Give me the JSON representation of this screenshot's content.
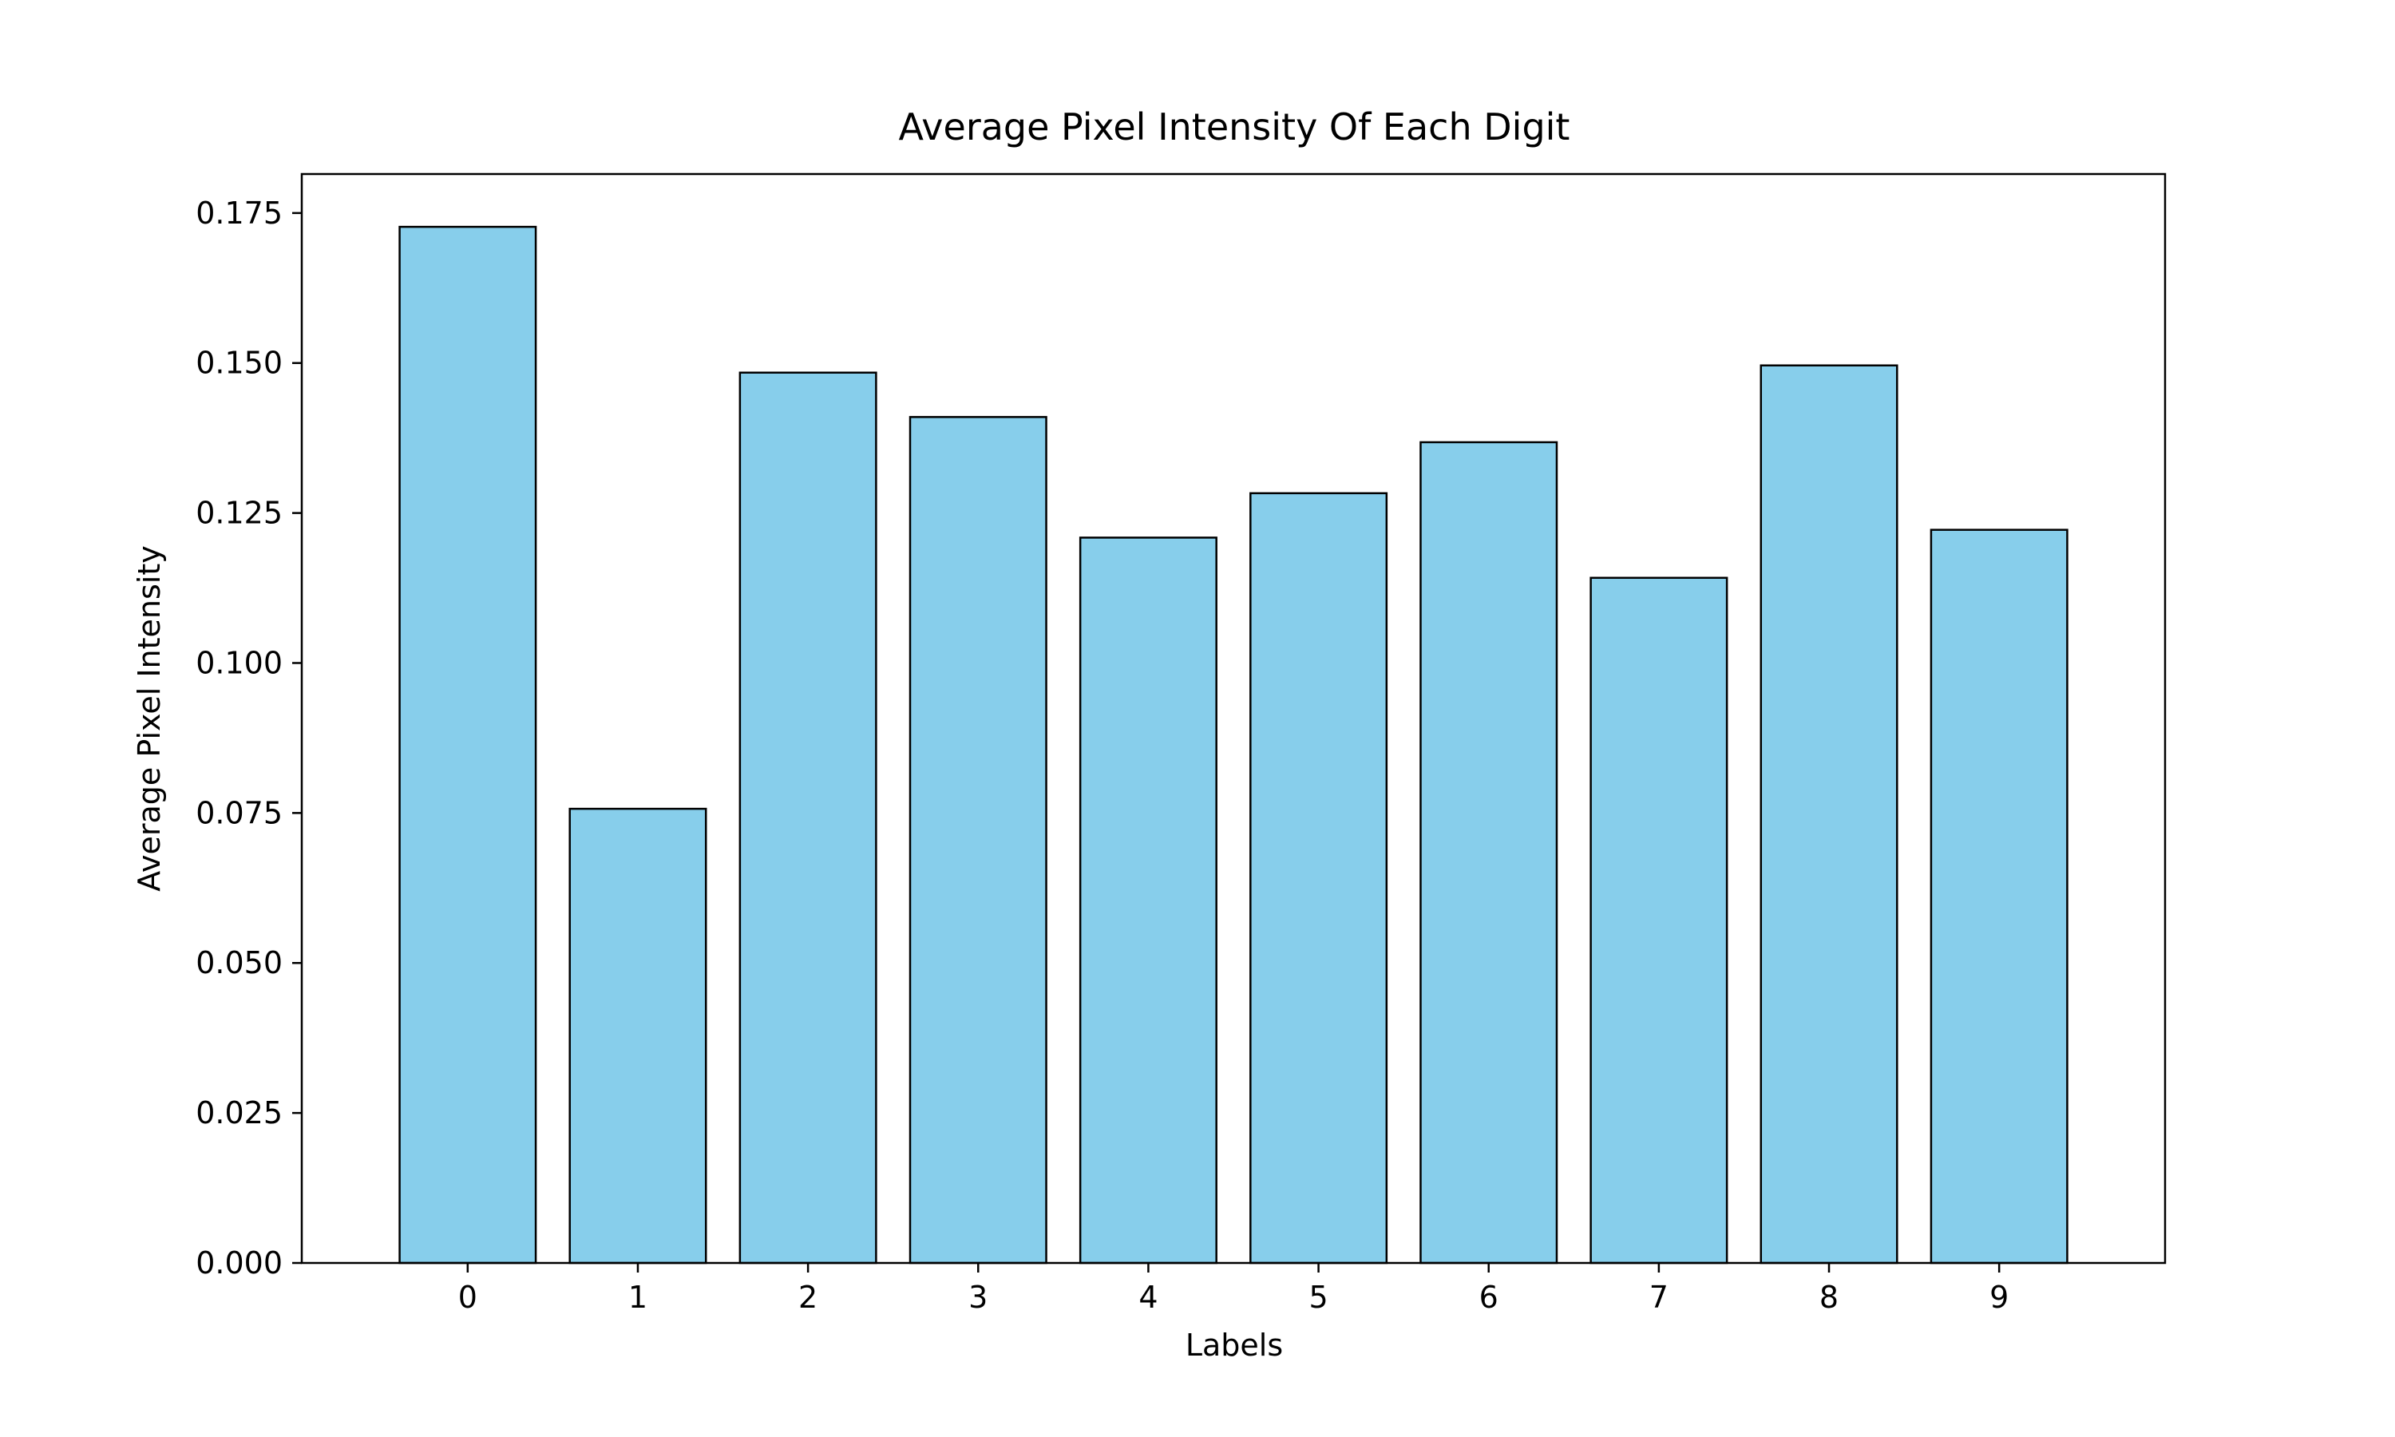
{
  "chart_data": {
    "type": "bar",
    "title": "Average Pixel Intensity Of Each Digit",
    "xlabel": "Labels",
    "ylabel": "Average Pixel Intensity",
    "categories": [
      "0",
      "1",
      "2",
      "3",
      "4",
      "5",
      "6",
      "7",
      "8",
      "9"
    ],
    "values": [
      0.1727,
      0.0757,
      0.1484,
      0.141,
      0.1209,
      0.1283,
      0.1368,
      0.1142,
      0.1496,
      0.1222
    ],
    "ylim": [
      0,
      0.1815
    ],
    "yticks": [
      "0.000",
      "0.025",
      "0.050",
      "0.075",
      "0.100",
      "0.125",
      "0.150",
      "0.175"
    ],
    "ytick_values": [
      0,
      0.025,
      0.05,
      0.075,
      0.1,
      0.125,
      0.15,
      0.175
    ],
    "grid": false,
    "legend": "none",
    "bar_color": "#87ceeb",
    "bar_edge_color": "#000000"
  }
}
